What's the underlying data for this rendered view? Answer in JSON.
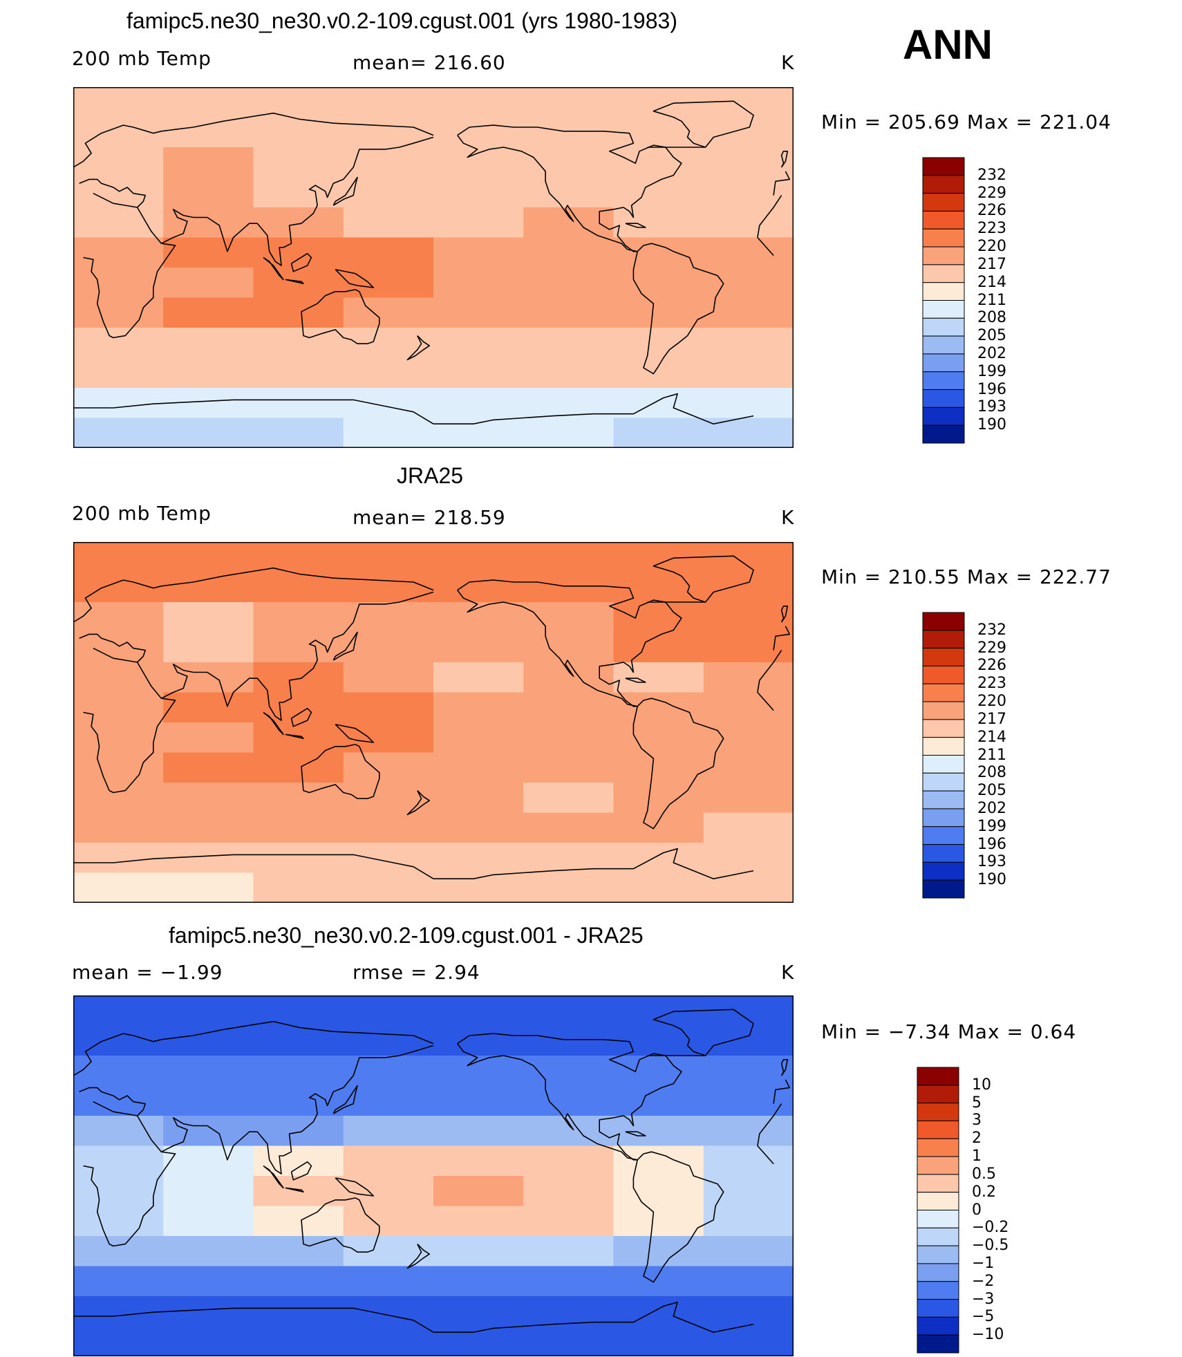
{
  "season_label": "ANN",
  "colors": {
    "bg": "#ffffff",
    "text": "#000000",
    "coast": "#000000"
  },
  "chart_data": [
    {
      "type": "heatmap",
      "title": "famipc5.ne30_ne30.v0.2-109.cgust.001 (yrs 1980-1983)",
      "variable": "200 mb Temp",
      "stat_text": "mean= 216.60",
      "units": "K",
      "minmax_text": "Min = 205.69 Max = 221.04",
      "mean": 216.6,
      "min": 205.69,
      "max": 221.04,
      "levels": [
        190,
        193,
        196,
        199,
        202,
        205,
        208,
        211,
        214,
        217,
        220,
        223,
        226,
        229,
        232
      ],
      "level_labels": [
        "232",
        "229",
        "226",
        "223",
        "220",
        "217",
        "214",
        "211",
        "208",
        "205",
        "202",
        "199",
        "196",
        "193",
        "190"
      ],
      "colorbar": [
        "#8b0000",
        "#b01c07",
        "#d3380f",
        "#f0592a",
        "#f8804d",
        "#faa37b",
        "#fcc7aa",
        "#feebd7",
        "#dfeefb",
        "#bed6f7",
        "#9cbbf3",
        "#7a9ef0",
        "#4f7cf0",
        "#2a57e3",
        "#0d2fc3",
        "#001a8c"
      ],
      "field": [
        {
          "lat": 90,
          "values": [
            214,
            214,
            214,
            214,
            214,
            214,
            214,
            214
          ]
        },
        {
          "lat": 60,
          "values": [
            214,
            217,
            214,
            214,
            214,
            214,
            214,
            214
          ]
        },
        {
          "lat": 30,
          "values": [
            214,
            217,
            217,
            214,
            214,
            217,
            214,
            214
          ]
        },
        {
          "lat": 15,
          "values": [
            217,
            220,
            220,
            220,
            217,
            217,
            217,
            217
          ]
        },
        {
          "lat": 0,
          "values": [
            217,
            217,
            220,
            220,
            217,
            217,
            217,
            217
          ]
        },
        {
          "lat": -15,
          "values": [
            217,
            220,
            220,
            217,
            217,
            217,
            217,
            217
          ]
        },
        {
          "lat": -30,
          "values": [
            214,
            214,
            214,
            214,
            214,
            214,
            214,
            214
          ]
        },
        {
          "lat": -45,
          "values": [
            214,
            214,
            214,
            214,
            214,
            214,
            214,
            214
          ]
        },
        {
          "lat": -60,
          "values": [
            208,
            208,
            208,
            208,
            208,
            208,
            208,
            208
          ]
        },
        {
          "lat": -75,
          "values": [
            205,
            205,
            205,
            208,
            208,
            208,
            205,
            205
          ]
        },
        {
          "lat": -90,
          "values": [
            205,
            205,
            205,
            205,
            205,
            205,
            205,
            205
          ]
        }
      ]
    },
    {
      "type": "heatmap",
      "title": "JRA25",
      "variable": "200 mb Temp",
      "stat_text": "mean= 218.59",
      "units": "K",
      "minmax_text": "Min = 210.55 Max = 222.77",
      "mean": 218.59,
      "min": 210.55,
      "max": 222.77,
      "levels": [
        190,
        193,
        196,
        199,
        202,
        205,
        208,
        211,
        214,
        217,
        220,
        223,
        226,
        229,
        232
      ],
      "level_labels": [
        "232",
        "229",
        "226",
        "223",
        "220",
        "217",
        "214",
        "211",
        "208",
        "205",
        "202",
        "199",
        "196",
        "193",
        "190"
      ],
      "colorbar": [
        "#8b0000",
        "#b01c07",
        "#d3380f",
        "#f0592a",
        "#f8804d",
        "#faa37b",
        "#fcc7aa",
        "#feebd7",
        "#dfeefb",
        "#bed6f7",
        "#9cbbf3",
        "#7a9ef0",
        "#4f7cf0",
        "#2a57e3",
        "#0d2fc3",
        "#001a8c"
      ],
      "field": [
        {
          "lat": 90,
          "values": [
            220,
            220,
            220,
            220,
            220,
            220,
            220,
            220
          ]
        },
        {
          "lat": 60,
          "values": [
            217,
            214,
            217,
            217,
            217,
            217,
            220,
            220
          ]
        },
        {
          "lat": 30,
          "values": [
            217,
            217,
            220,
            217,
            214,
            217,
            214,
            217
          ]
        },
        {
          "lat": 15,
          "values": [
            217,
            220,
            220,
            220,
            217,
            217,
            217,
            217
          ]
        },
        {
          "lat": 0,
          "values": [
            217,
            217,
            220,
            220,
            217,
            217,
            217,
            217
          ]
        },
        {
          "lat": -15,
          "values": [
            217,
            220,
            220,
            217,
            217,
            217,
            217,
            217
          ]
        },
        {
          "lat": -30,
          "values": [
            217,
            217,
            217,
            217,
            217,
            214,
            217,
            217
          ]
        },
        {
          "lat": -45,
          "values": [
            217,
            217,
            217,
            217,
            217,
            217,
            217,
            214
          ]
        },
        {
          "lat": -60,
          "values": [
            214,
            214,
            214,
            214,
            214,
            214,
            214,
            214
          ]
        },
        {
          "lat": -75,
          "values": [
            211,
            211,
            214,
            214,
            214,
            214,
            214,
            214
          ]
        },
        {
          "lat": -90,
          "values": [
            214,
            214,
            214,
            214,
            214,
            214,
            214,
            214
          ]
        }
      ]
    },
    {
      "type": "heatmap",
      "title": "famipc5.ne30_ne30.v0.2-109.cgust.001 - JRA25",
      "stat_text": "mean =   −1.99",
      "rmse_text": "rmse =    2.94",
      "units": "K",
      "minmax_text": "Min =   −7.34 Max =     0.64",
      "mean": -1.99,
      "rmse": 2.94,
      "min": -7.34,
      "max": 0.64,
      "levels": [
        -10,
        -5,
        -3,
        -2,
        -1,
        -0.5,
        -0.2,
        0,
        0.2,
        0.5,
        1,
        2,
        3,
        5,
        10
      ],
      "level_labels": [
        "10",
        "5",
        "3",
        "2",
        "1",
        "0.5",
        "0.2",
        "0",
        "−0.2",
        "−0.5",
        "−1",
        "−2",
        "−3",
        "−5",
        "−10"
      ],
      "colorbar": [
        "#8b0000",
        "#b01c07",
        "#d3380f",
        "#f0592a",
        "#f8804d",
        "#faa37b",
        "#fcc7aa",
        "#feebd7",
        "#dfeefb",
        "#bed6f7",
        "#9cbbf3",
        "#7a9ef0",
        "#4f7cf0",
        "#2a57e3",
        "#0d2fc3",
        "#001a8c"
      ],
      "field": [
        {
          "lat": 90,
          "values": [
            -5,
            -5,
            -5,
            -5,
            -5,
            -5,
            -5,
            -5
          ]
        },
        {
          "lat": 60,
          "values": [
            -3,
            -3,
            -3,
            -3,
            -3,
            -3,
            -3,
            -3
          ]
        },
        {
          "lat": 30,
          "values": [
            -1,
            -2,
            -2,
            -1,
            -1,
            -1,
            -1,
            -1
          ]
        },
        {
          "lat": 15,
          "values": [
            -0.5,
            -0.2,
            0,
            0.2,
            0.2,
            0.2,
            0,
            -0.5
          ]
        },
        {
          "lat": 0,
          "values": [
            -0.5,
            -0.2,
            0.2,
            0.2,
            0.5,
            0.2,
            0,
            -0.5
          ]
        },
        {
          "lat": -15,
          "values": [
            -0.5,
            -0.2,
            0,
            0.2,
            0.2,
            0.2,
            0,
            -0.5
          ]
        },
        {
          "lat": -30,
          "values": [
            -1,
            -1,
            -1,
            -0.5,
            -0.5,
            -0.5,
            -1,
            -1
          ]
        },
        {
          "lat": -45,
          "values": [
            -3,
            -3,
            -3,
            -3,
            -3,
            -3,
            -3,
            -3
          ]
        },
        {
          "lat": -60,
          "values": [
            -5,
            -5,
            -5,
            -5,
            -5,
            -5,
            -5,
            -5
          ]
        },
        {
          "lat": -75,
          "values": [
            -5,
            -5,
            -5,
            -5,
            -5,
            -5,
            -5,
            -5
          ]
        },
        {
          "lat": -90,
          "values": [
            -5,
            -5,
            -5,
            -5,
            -5,
            -5,
            -5,
            -5
          ]
        }
      ]
    }
  ]
}
